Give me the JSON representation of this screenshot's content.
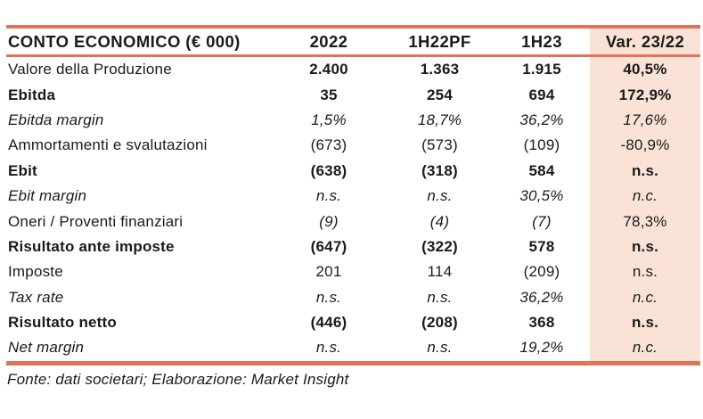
{
  "chart_data": {
    "type": "table",
    "title": "CONTO ECONOMICO (€ 000)",
    "columns": [
      "2022",
      "1H22PF",
      "1H23",
      "Var. 23/22"
    ],
    "rows": [
      {
        "label": "Valore della Produzione",
        "values": [
          "2.400",
          "1.363",
          "1.915",
          "40,5%"
        ]
      },
      {
        "label": "Ebitda",
        "values": [
          "35",
          "254",
          "694",
          "172,9%"
        ]
      },
      {
        "label": "Ebitda margin",
        "values": [
          "1,5%",
          "18,7%",
          "36,2%",
          "17,6%"
        ]
      },
      {
        "label": "Ammortamenti e svalutazioni",
        "values": [
          "(673)",
          "(573)",
          "(109)",
          "-80,9%"
        ]
      },
      {
        "label": "Ebit",
        "values": [
          "(638)",
          "(318)",
          "584",
          "n.s."
        ]
      },
      {
        "label": "Ebit margin",
        "values": [
          "n.s.",
          "n.s.",
          "30,5%",
          "n.c."
        ]
      },
      {
        "label": "Oneri / Proventi finanziari",
        "values": [
          "(9)",
          "(4)",
          "(7)",
          "78,3%"
        ]
      },
      {
        "label": "Risultato ante imposte",
        "values": [
          "(647)",
          "(322)",
          "578",
          "n.s."
        ]
      },
      {
        "label": "Imposte",
        "values": [
          "201",
          "114",
          "(209)",
          "n.s."
        ]
      },
      {
        "label": "Tax rate",
        "values": [
          "n.s.",
          "n.s.",
          "36,2%",
          "n.c."
        ]
      },
      {
        "label": "Risultato netto",
        "values": [
          "(446)",
          "(208)",
          "368",
          "n.s."
        ]
      },
      {
        "label": "Net margin",
        "values": [
          "n.s.",
          "n.s.",
          "19,2%",
          "n.c."
        ]
      }
    ],
    "source_note": "Fonte: dati societari; Elaborazione: Market Insight",
    "layout": {
      "grid": "horizontal-rules-only",
      "highlight_column": "Var. 23/22"
    }
  },
  "colors": {
    "accent_rule": "#E2735A",
    "highlight_column_bg": "#FAE3D6",
    "text": "#1a1a1a",
    "background": "#ffffff"
  }
}
